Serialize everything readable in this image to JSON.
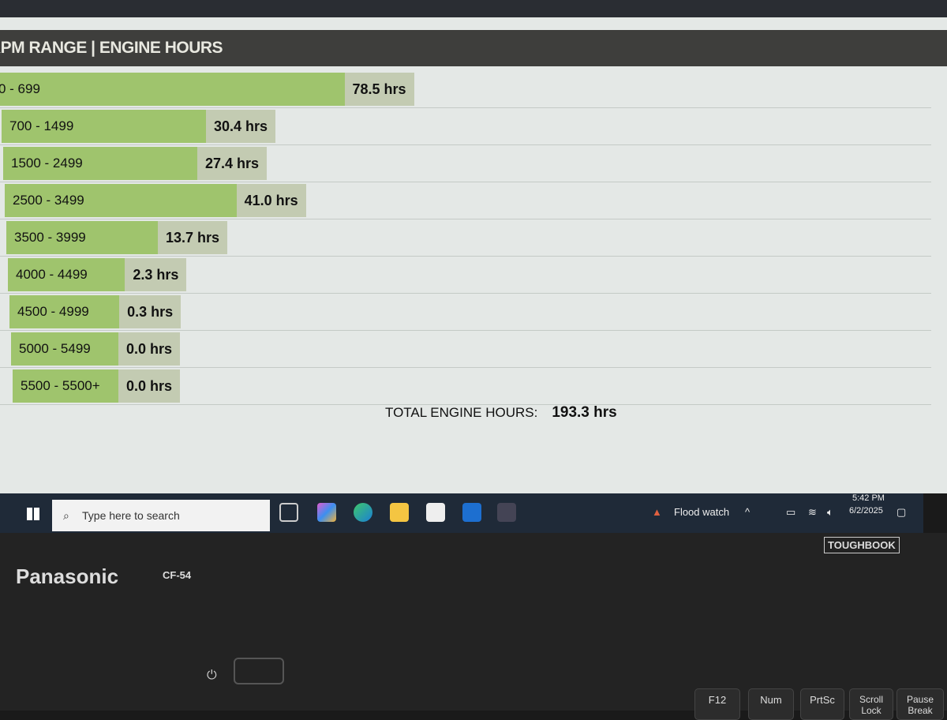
{
  "chart_data": {
    "type": "bar",
    "orientation": "horizontal",
    "title": "RPM RANGE | ENGINE HOURS",
    "categories": [
      "0 - 699",
      "700 - 1499",
      "1500 - 2499",
      "2500 - 3499",
      "3500 - 3999",
      "4000 - 4499",
      "4500 - 4999",
      "5000 - 5499",
      "5500 - 5500+"
    ],
    "values": [
      78.5,
      30.4,
      27.4,
      41.0,
      13.7,
      2.3,
      0.3,
      0.0,
      0.0
    ],
    "value_labels": [
      "78.5 hrs",
      "30.4 hrs",
      "27.4 hrs",
      "41.0 hrs",
      "13.7 hrs",
      "2.3 hrs",
      "0.3 hrs",
      "0.0 hrs",
      "0.0 hrs"
    ],
    "bar_color": "#9fc46d"
  },
  "total": {
    "label": "TOTAL ENGINE HOURS:",
    "value": "193.3 hrs"
  },
  "taskbar": {
    "search_placeholder": "Type here to search",
    "weather": "Flood watch",
    "time": "5:42 PM",
    "date": "6/2/2025"
  },
  "laptop": {
    "brand": "Panasonic",
    "model": "CF-54",
    "series": "TOUGHBOOK",
    "keys": [
      "F12",
      "Num",
      "PrtSc",
      "Scroll Lock",
      "Pause Break"
    ]
  }
}
